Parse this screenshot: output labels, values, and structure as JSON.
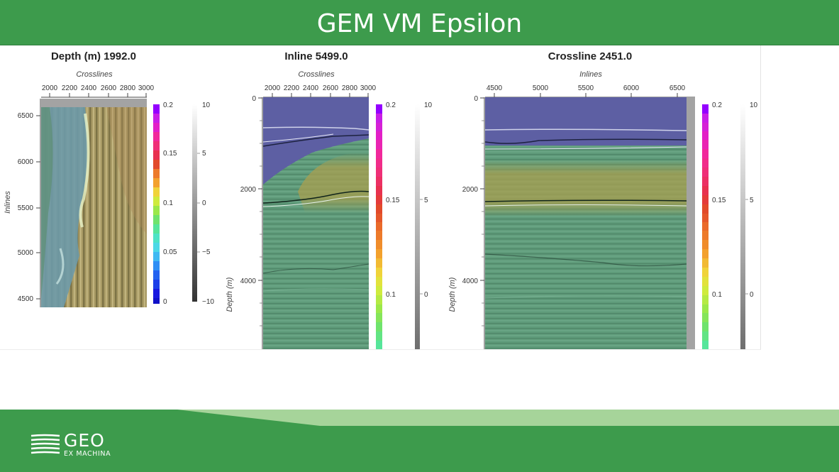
{
  "slide": {
    "title": "GEM VM Epsilon",
    "logo_text": "GEO",
    "logo_subtext": "EX MACHINA"
  },
  "colors": {
    "brand_green": "#3d9b4c",
    "light_green": "#a6d49a",
    "seismic_overlay_green": "#5f9b7a",
    "seismic_overlay_blue": "#5d5fa3",
    "seismic_overlay_tan": "#9d9a55"
  },
  "panels": {
    "depth": {
      "title": "Depth (m) 1992.0",
      "xlabel": "Crosslines",
      "ylabel": "Inlines",
      "xticks": [
        "2000",
        "2200",
        "2400",
        "2600",
        "2800",
        "3000"
      ],
      "yticks": [
        "6500",
        "6000",
        "5500",
        "5000",
        "4500"
      ],
      "velocity_colorbar_ticks": [
        "0.2",
        "0.15",
        "0.1",
        "0.05",
        "0"
      ],
      "amplitude_colorbar_ticks": [
        "10",
        "5",
        "0",
        "−5",
        "−10"
      ]
    },
    "inline": {
      "title": "Inline 5499.0",
      "xlabel": "Crosslines",
      "ylabel": "Depth (m)",
      "xticks": [
        "2000",
        "2200",
        "2400",
        "2600",
        "2800",
        "3000"
      ],
      "yticks": [
        "0",
        "2000",
        "4000"
      ],
      "velocity_colorbar_ticks": [
        "0.2",
        "0.15",
        "0.1"
      ],
      "amplitude_colorbar_ticks": [
        "10",
        "5",
        "0"
      ]
    },
    "crossline": {
      "title": "Crossline 2451.0",
      "xlabel": "Inlines",
      "ylabel": "Depth (m)",
      "xticks": [
        "4500",
        "5000",
        "5500",
        "6000",
        "6500"
      ],
      "yticks": [
        "0",
        "2000",
        "4000"
      ],
      "velocity_colorbar_ticks": [
        "0.2",
        "0.15",
        "0.1"
      ],
      "amplitude_colorbar_ticks": [
        "10",
        "5",
        "0"
      ]
    }
  }
}
